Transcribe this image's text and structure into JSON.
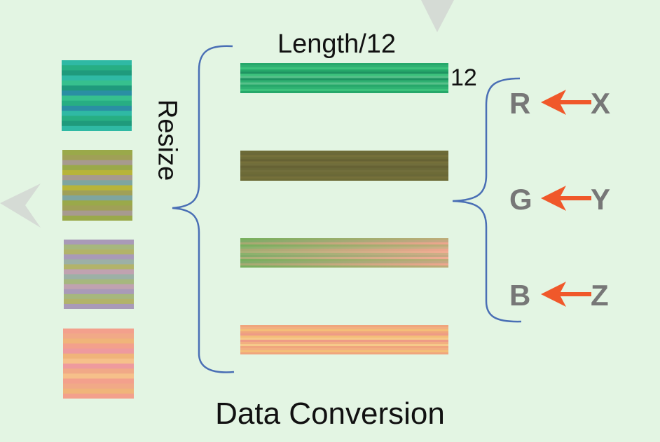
{
  "labels": {
    "length": "Length/12",
    "twelve": "12",
    "resize": "Resize",
    "footer": "Data Conversion"
  },
  "channels": [
    {
      "target": "R",
      "source": "X"
    },
    {
      "target": "G",
      "source": "Y"
    },
    {
      "target": "B",
      "source": "Z"
    }
  ],
  "colors": {
    "background": "#e3f5e3",
    "brace": "#4a6fb5",
    "arrow": "#f0582a",
    "channel_text": "#777777",
    "decor_arrow": "#cfd4cf"
  },
  "squares": [
    {
      "name": "square-teal",
      "palette": [
        "#2fb9a4",
        "#1f9a7c",
        "#36c08e",
        "#2a8fa3",
        "#27ae83"
      ]
    },
    {
      "name": "square-olive",
      "palette": [
        "#9aa94a",
        "#a79a8f",
        "#b7b43a",
        "#7fa59f",
        "#a0a057"
      ]
    },
    {
      "name": "square-lavender",
      "palette": [
        "#a99ab8",
        "#b2b36a",
        "#9cb0a6",
        "#c0a2b0",
        "#a6b77e"
      ]
    },
    {
      "name": "square-salmon",
      "palette": [
        "#f3a08c",
        "#f0b47a",
        "#ee9a9e",
        "#f6c08a",
        "#f1a987"
      ]
    }
  ],
  "bars": [
    {
      "name": "bar-green",
      "palette": [
        "#26a86a",
        "#3cc27c",
        "#1f9462",
        "#56c08a",
        "#2fb072"
      ]
    },
    {
      "name": "bar-olive",
      "palette": [
        "#6d6b37",
        "#75703a",
        "#666234",
        "#716e3c",
        "#6a6838"
      ]
    },
    {
      "name": "bar-gradient",
      "palette": [
        "#7fb060",
        "#e8a38e",
        "#a6b780",
        "#f0b39a",
        "#94a87a"
      ]
    },
    {
      "name": "bar-peach",
      "palette": [
        "#f0a57d",
        "#f4be78",
        "#ee9b86",
        "#f6c98a",
        "#f2af80"
      ]
    }
  ]
}
